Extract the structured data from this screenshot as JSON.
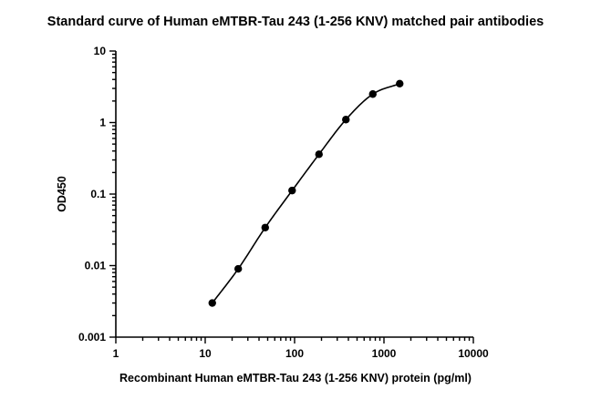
{
  "chart_data": {
    "type": "scatter",
    "title": "Standard curve of Human eMTBR-Tau 243 (1-256 KNV) matched pair antibodies",
    "xlabel": "Recombinant Human eMTBR-Tau 243 (1-256 KNV) protein (pg/ml)",
    "ylabel": "OD450",
    "x_scale": "log",
    "y_scale": "log",
    "xlim": [
      1,
      10000
    ],
    "ylim": [
      0.001,
      10
    ],
    "x_ticks": [
      "1",
      "10",
      "100",
      "1000",
      "10000"
    ],
    "y_ticks": [
      "0.001",
      "0.01",
      "0.1",
      "1",
      "10"
    ],
    "grid": false,
    "fit": "sigmoidal curve fit",
    "series": [
      {
        "x": [
          12,
          23.4,
          46.9,
          93.8,
          187.5,
          375,
          750,
          1500
        ],
        "y": [
          0.003,
          0.009,
          0.034,
          0.112,
          0.36,
          1.1,
          2.5,
          3.5
        ]
      }
    ]
  }
}
